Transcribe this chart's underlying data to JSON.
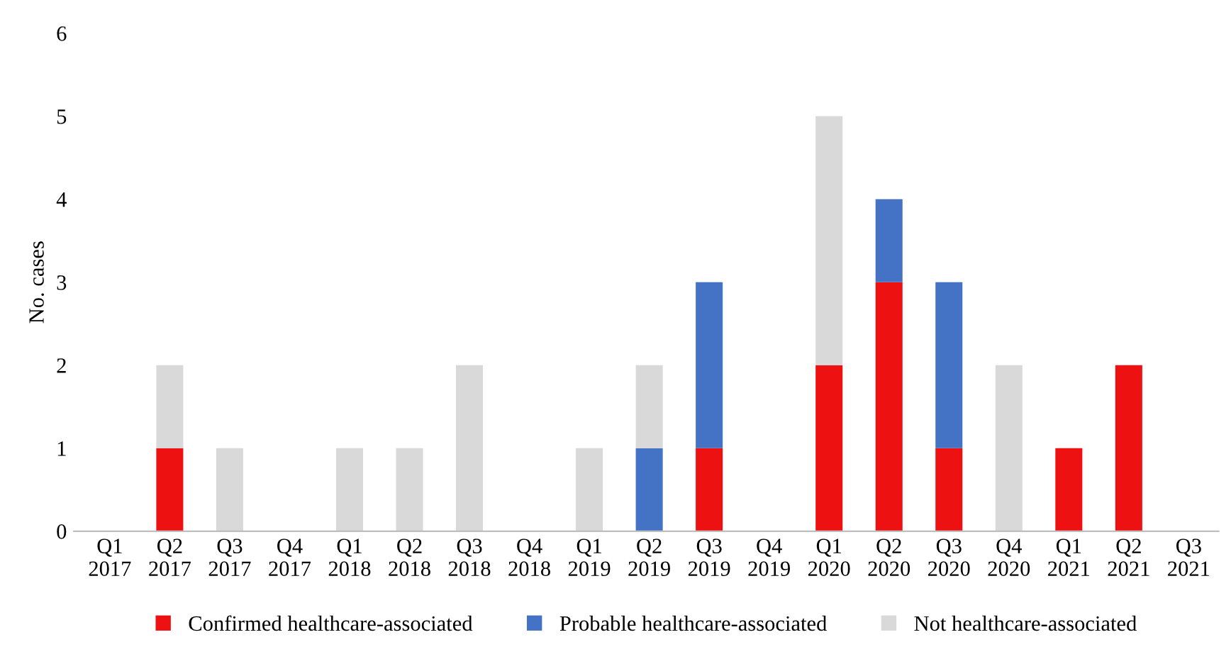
{
  "chart_data": {
    "type": "bar",
    "stacked": true,
    "ylabel": "No. cases",
    "categories": [
      "Q1\n2017",
      "Q2\n2017",
      "Q3\n2017",
      "Q4\n2017",
      "Q1\n2018",
      "Q2\n2018",
      "Q3\n2018",
      "Q4\n2018",
      "Q1\n2019",
      "Q2\n2019",
      "Q3\n2019",
      "Q4\n2019",
      "Q1\n2020",
      "Q2\n2020",
      "Q3\n2020",
      "Q4\n2020",
      "Q1\n2021",
      "Q2\n2021",
      "Q3\n2021"
    ],
    "series": [
      {
        "name": "Confirmed healthcare-associated",
        "color": "#ee1111",
        "values": [
          0,
          1,
          0,
          0,
          0,
          0,
          0,
          0,
          0,
          0,
          1,
          0,
          2,
          3,
          1,
          0,
          1,
          2,
          0
        ]
      },
      {
        "name": "Probable healthcare-associated",
        "color": "#4472c4",
        "values": [
          0,
          0,
          0,
          0,
          0,
          0,
          0,
          0,
          0,
          1,
          2,
          0,
          0,
          1,
          2,
          0,
          0,
          0,
          0
        ]
      },
      {
        "name": "Not healthcare-associated",
        "color": "#d9d9d9",
        "values": [
          0,
          1,
          1,
          0,
          1,
          1,
          2,
          0,
          1,
          1,
          0,
          0,
          3,
          0,
          0,
          2,
          0,
          0,
          0
        ]
      }
    ],
    "ylim": [
      0,
      6
    ],
    "yticks": [
      0,
      1,
      2,
      3,
      4,
      5,
      6
    ],
    "grid": false,
    "legend": "bottom"
  }
}
